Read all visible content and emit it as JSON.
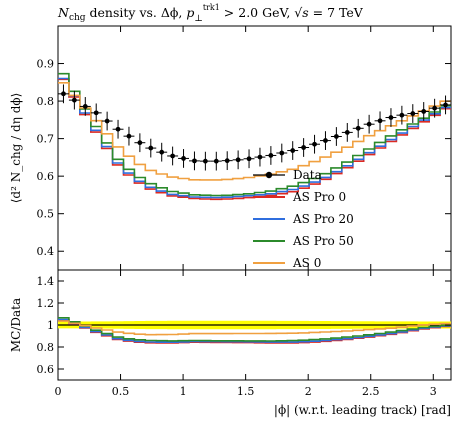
{
  "chart_data": {
    "type": "line",
    "title_parts": {
      "a": "N",
      "a_sub": "chg",
      "b": " density vs. Δϕ, ",
      "c": "p",
      "c_sub": "⊥",
      "c_sup": "trk1",
      "d": " > 2.0 GeV, ",
      "e": "√",
      "e_s": "s",
      "f": " = 7 TeV"
    },
    "top_ylabel": "⟨d² N_chg / dη dϕ⟩",
    "bottom_ylabel": "MC/Data",
    "xlabel": "|ϕ| (w.r.t. leading track) [rad]",
    "xlim": [
      0,
      3.1416
    ],
    "top_ylim": [
      0.35,
      1.0
    ],
    "bottom_ylim": [
      0.5,
      1.5
    ],
    "x_ticks": [
      "0",
      "0.5",
      "1",
      "1.5",
      "2",
      "2.5",
      "3"
    ],
    "x_tick_values": [
      0,
      0.5,
      1,
      1.5,
      2,
      2.5,
      3
    ],
    "top_y_ticks": [
      "0.4",
      "0.5",
      "0.6",
      "0.7",
      "0.8",
      "0.9"
    ],
    "top_y_tick_values": [
      0.4,
      0.5,
      0.6,
      0.7,
      0.8,
      0.9
    ],
    "bottom_y_ticks": [
      "0.6",
      "0.8",
      "1",
      "1.2",
      "1.4"
    ],
    "bottom_y_tick_values": [
      0.6,
      0.8,
      1.0,
      1.2,
      1.4
    ],
    "n_bins": 36,
    "data": {
      "name": "Data",
      "color": "#000000",
      "anchors": [
        [
          0.04,
          0.82
        ],
        [
          0.3,
          0.77
        ],
        [
          0.5,
          0.72
        ],
        [
          0.7,
          0.68
        ],
        [
          0.9,
          0.655
        ],
        [
          1.1,
          0.64
        ],
        [
          1.3,
          0.64
        ],
        [
          1.5,
          0.645
        ],
        [
          1.7,
          0.655
        ],
        [
          1.9,
          0.67
        ],
        [
          2.1,
          0.69
        ],
        [
          2.3,
          0.715
        ],
        [
          2.5,
          0.74
        ],
        [
          2.7,
          0.76
        ],
        [
          2.9,
          0.77
        ],
        [
          3.1,
          0.79
        ]
      ],
      "error": 0.025
    },
    "series": [
      {
        "name": "AS Pro 0",
        "color": "#dd2a22",
        "anchors": [
          [
            0.04,
            0.86
          ],
          [
            0.3,
            0.72
          ],
          [
            0.5,
            0.62
          ],
          [
            0.7,
            0.57
          ],
          [
            0.9,
            0.548
          ],
          [
            1.1,
            0.54
          ],
          [
            1.3,
            0.538
          ],
          [
            1.5,
            0.542
          ],
          [
            1.7,
            0.548
          ],
          [
            1.9,
            0.56
          ],
          [
            2.1,
            0.585
          ],
          [
            2.3,
            0.62
          ],
          [
            2.5,
            0.66
          ],
          [
            2.7,
            0.7
          ],
          [
            2.9,
            0.74
          ],
          [
            3.1,
            0.78
          ]
        ]
      },
      {
        "name": "AS Pro 20",
        "color": "#2f6ede",
        "anchors": [
          [
            0.04,
            0.862
          ],
          [
            0.3,
            0.725
          ],
          [
            0.5,
            0.625
          ],
          [
            0.7,
            0.575
          ],
          [
            0.9,
            0.552
          ],
          [
            1.1,
            0.544
          ],
          [
            1.3,
            0.543
          ],
          [
            1.5,
            0.547
          ],
          [
            1.7,
            0.553
          ],
          [
            1.9,
            0.566
          ],
          [
            2.1,
            0.59
          ],
          [
            2.3,
            0.625
          ],
          [
            2.5,
            0.665
          ],
          [
            2.7,
            0.705
          ],
          [
            2.9,
            0.745
          ],
          [
            3.1,
            0.783
          ]
        ]
      },
      {
        "name": "AS Pro 50",
        "color": "#2b8a2b",
        "anchors": [
          [
            0.04,
            0.875
          ],
          [
            0.3,
            0.735
          ],
          [
            0.5,
            0.635
          ],
          [
            0.7,
            0.585
          ],
          [
            0.9,
            0.56
          ],
          [
            1.1,
            0.55
          ],
          [
            1.3,
            0.548
          ],
          [
            1.5,
            0.552
          ],
          [
            1.7,
            0.56
          ],
          [
            1.9,
            0.575
          ],
          [
            2.1,
            0.6
          ],
          [
            2.3,
            0.635
          ],
          [
            2.5,
            0.675
          ],
          [
            2.7,
            0.715
          ],
          [
            2.9,
            0.75
          ],
          [
            3.1,
            0.788
          ]
        ]
      },
      {
        "name": "AS 0",
        "color": "#f0a040",
        "anchors": [
          [
            0.04,
            0.85
          ],
          [
            0.3,
            0.75
          ],
          [
            0.5,
            0.67
          ],
          [
            0.7,
            0.62
          ],
          [
            0.9,
            0.598
          ],
          [
            1.1,
            0.59
          ],
          [
            1.3,
            0.59
          ],
          [
            1.5,
            0.595
          ],
          [
            1.7,
            0.605
          ],
          [
            1.9,
            0.62
          ],
          [
            2.1,
            0.645
          ],
          [
            2.3,
            0.675
          ],
          [
            2.5,
            0.71
          ],
          [
            2.7,
            0.74
          ],
          [
            2.9,
            0.77
          ],
          [
            3.1,
            0.8
          ]
        ]
      }
    ],
    "error_band_color": "#ffff00",
    "legend_placement": "center-right"
  }
}
